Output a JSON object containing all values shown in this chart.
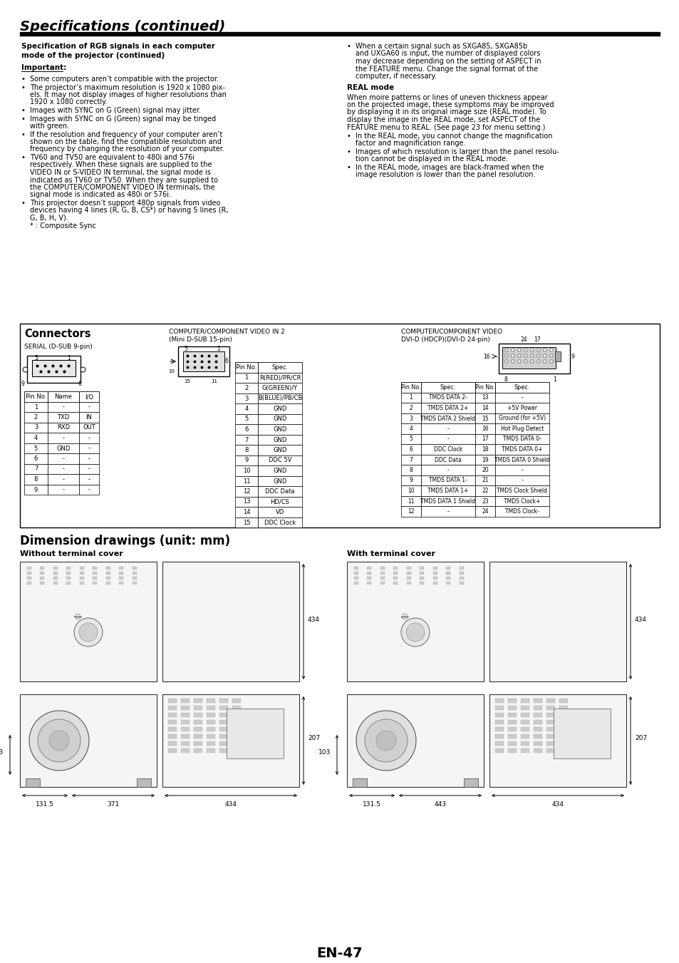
{
  "title": "Specifications (continued)",
  "page_number": "EN-47",
  "bg": "#ffffff",
  "serial_headers": [
    "Pin No.",
    "Name",
    "I/O"
  ],
  "serial_rows": [
    [
      "1",
      "-",
      "-"
    ],
    [
      "2",
      "TXD",
      "IN"
    ],
    [
      "3",
      "RXD",
      "OUT"
    ],
    [
      "4",
      "-",
      "-"
    ],
    [
      "5",
      "GND",
      "-"
    ],
    [
      "6",
      "-",
      "-"
    ],
    [
      "7",
      "-",
      "-"
    ],
    [
      "8",
      "-",
      "-"
    ],
    [
      "9",
      "-",
      "-"
    ]
  ],
  "mini_headers": [
    "Pin No.",
    "Spec."
  ],
  "mini_rows": [
    [
      "1",
      "R(RED)/PR/CR"
    ],
    [
      "2",
      "G(GREEN)/Y"
    ],
    [
      "3",
      "B(BLUE)/PB/CB"
    ],
    [
      "4",
      "GND"
    ],
    [
      "5",
      "GND"
    ],
    [
      "6",
      "GND"
    ],
    [
      "7",
      "GND"
    ],
    [
      "8",
      "GND"
    ],
    [
      "9",
      "DDC 5V"
    ],
    [
      "10",
      "GND"
    ],
    [
      "11",
      "GND"
    ],
    [
      "12",
      "DDC Data"
    ],
    [
      "13",
      "HD/CS"
    ],
    [
      "14",
      "VD"
    ],
    [
      "15",
      "DDC Clock"
    ]
  ],
  "dvi_headers": [
    "Pin No.",
    "Spec.",
    "Pin No.",
    "Spec."
  ],
  "dvi_rows": [
    [
      "1",
      "TMDS DATA 2-",
      "13",
      "-"
    ],
    [
      "2",
      "TMDS DATA 2+",
      "14",
      "+5V Power"
    ],
    [
      "3",
      "TMDS DATA 2 Shield",
      "15",
      "Ground (for +5V)"
    ],
    [
      "4",
      "-",
      "16",
      "Hot Plug Detect"
    ],
    [
      "5",
      "-",
      "17",
      "TMDS DATA 0-"
    ],
    [
      "6",
      "DDC Clock",
      "18",
      "TMDS DATA 0+"
    ],
    [
      "7",
      "DDC Data",
      "19",
      "TMDS DATA 0 Shield"
    ],
    [
      "8",
      "-",
      "20",
      "-"
    ],
    [
      "9",
      "TMDS DATA 1-",
      "21",
      "-"
    ],
    [
      "10",
      "TMDS DATA 1+",
      "22",
      "TMDS Clock Shield"
    ],
    [
      "11",
      "TMDS DATA 1 Shield",
      "23",
      "TMDS Clock+"
    ],
    [
      "12",
      "-",
      "24",
      "TMDS Clock-"
    ]
  ]
}
